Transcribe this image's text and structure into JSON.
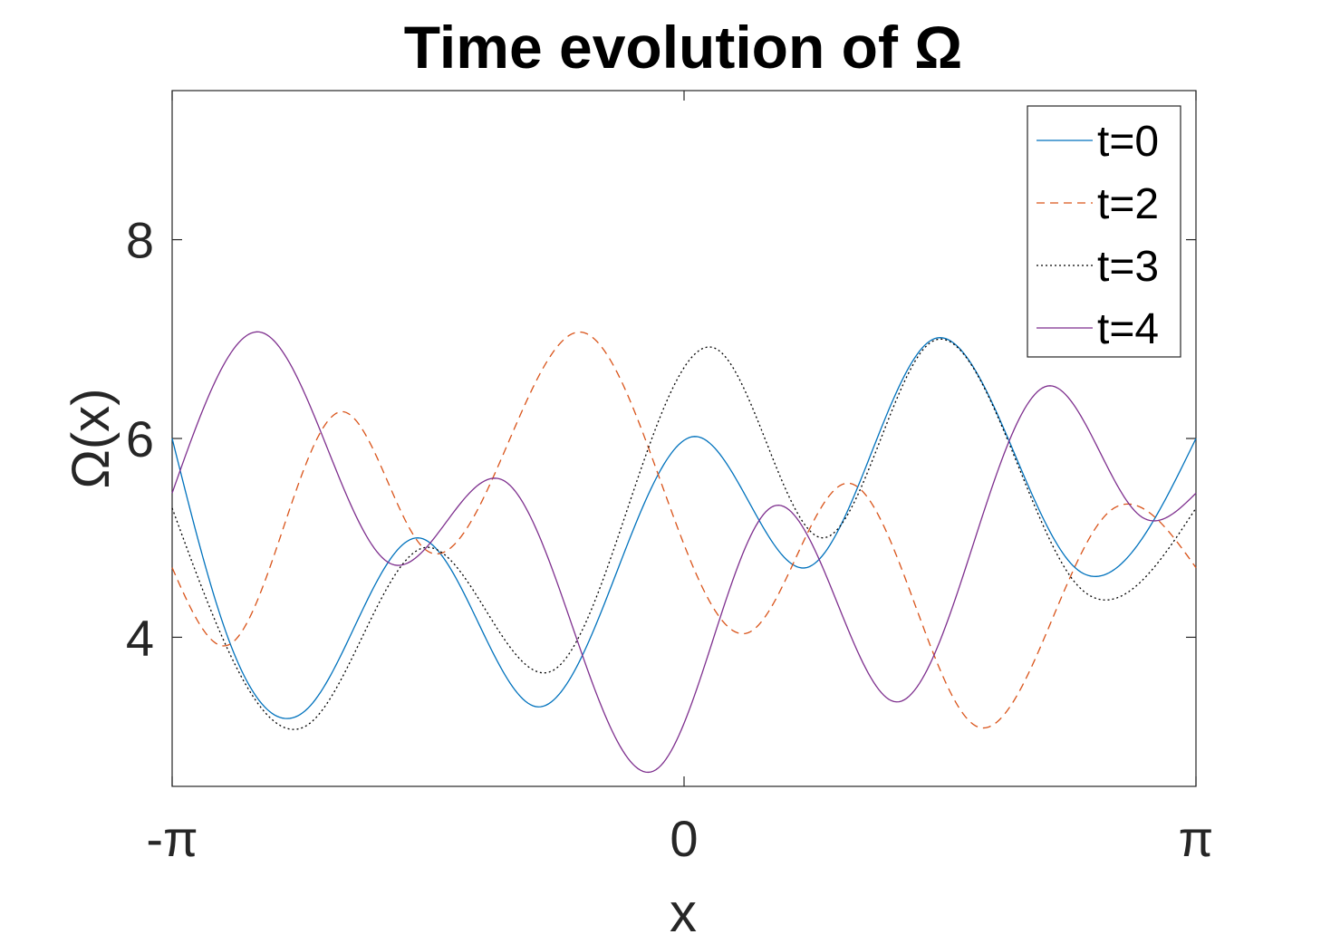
{
  "chart_data": {
    "type": "line",
    "title": "Time evolution of Ω",
    "xlabel": "x",
    "ylabel": "Ω(x)",
    "xlim": [
      -3.14159,
      3.14159
    ],
    "ylim": [
      2.5,
      9.5
    ],
    "x_ticks": [
      {
        "value": -3.14159,
        "label": "-π"
      },
      {
        "value": 0,
        "label": "0"
      },
      {
        "value": 3.14159,
        "label": "π"
      }
    ],
    "y_ticks": [
      {
        "value": 4,
        "label": "4"
      },
      {
        "value": 6,
        "label": "6"
      },
      {
        "value": 8,
        "label": "8"
      }
    ],
    "grid": false,
    "legend_position": "top-right",
    "series": [
      {
        "name": "t=0",
        "color": "#0072bd",
        "dash": "solid",
        "points": [
          [
            -3.1416,
            6.0
          ],
          [
            -2.8,
            4.0
          ],
          [
            -2.3,
            3.3
          ],
          [
            -1.63,
            5.0
          ],
          [
            -0.9,
            3.3
          ],
          [
            0.07,
            6.02
          ],
          [
            0.75,
            4.7
          ],
          [
            1.53,
            7.0
          ],
          [
            2.4,
            4.7
          ],
          [
            3.1416,
            6.0
          ]
        ]
      },
      {
        "name": "t=2",
        "color": "#d95319",
        "dash": "dashed",
        "points": [
          [
            -3.1416,
            4.7
          ],
          [
            -2.8,
            3.92
          ],
          [
            -2.1,
            6.27
          ],
          [
            -1.6,
            4.9
          ],
          [
            -0.63,
            7.07
          ],
          [
            0.4,
            4.05
          ],
          [
            1.0,
            5.55
          ],
          [
            1.8,
            3.1
          ],
          [
            2.6,
            5.25
          ],
          [
            3.1416,
            4.7
          ]
        ]
      },
      {
        "name": "t=3",
        "color": "#000000",
        "dash": "dotted",
        "points": [
          [
            -3.1416,
            5.3
          ],
          [
            -2.3,
            3.13
          ],
          [
            -1.6,
            4.9
          ],
          [
            -0.8,
            3.67
          ],
          [
            0.2,
            6.9
          ],
          [
            0.85,
            5.0
          ],
          [
            1.5,
            6.95
          ],
          [
            2.4,
            4.55
          ],
          [
            3.1416,
            5.3
          ]
        ]
      },
      {
        "name": "t=4",
        "color": "#7e2f8e",
        "dash": "solid",
        "points": [
          [
            -3.1416,
            5.45
          ],
          [
            -2.6,
            7.07
          ],
          [
            -1.8,
            4.74
          ],
          [
            -1.1,
            5.57
          ],
          [
            -0.17,
            2.67
          ],
          [
            0.55,
            5.32
          ],
          [
            1.3,
            3.35
          ],
          [
            2.24,
            6.53
          ],
          [
            2.8,
            5.22
          ],
          [
            3.1416,
            5.45
          ]
        ]
      }
    ]
  }
}
